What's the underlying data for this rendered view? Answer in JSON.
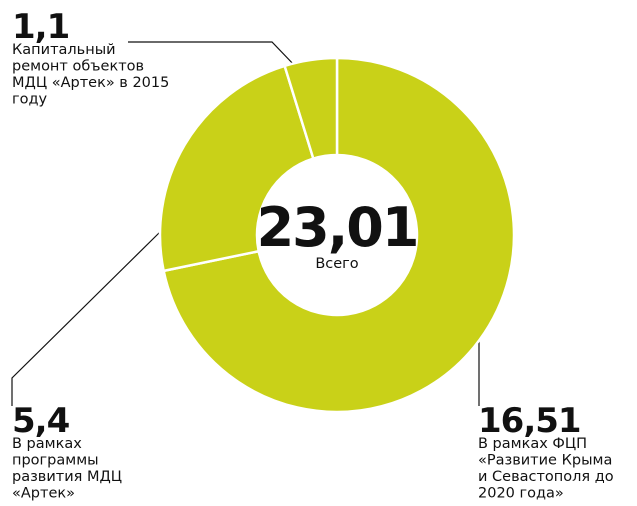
{
  "chart_data": {
    "type": "donut",
    "categories": [
      [
        "В рамках ФЦП",
        "«Развитие Крыма",
        "и Севастополя до",
        "2020 года»"
      ],
      [
        "В рамках",
        "программы",
        "развития МДЦ",
        "«Артек»"
      ],
      [
        "Капитальный",
        "ремонт объектов",
        "МДЦ «Артек» в 2015",
        "году"
      ]
    ],
    "values": [
      16.51,
      5.4,
      1.1
    ],
    "value_labels": [
      "16,51",
      "5,4",
      "1,1"
    ],
    "color": "#c9d118",
    "center": {
      "value": 23.01,
      "label": "23,01",
      "caption": "Всего"
    }
  }
}
